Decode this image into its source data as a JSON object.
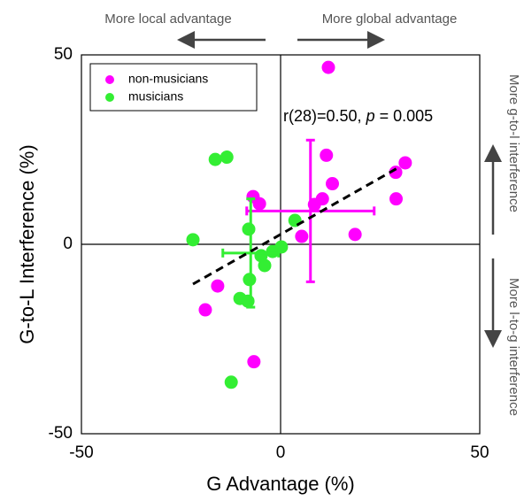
{
  "chart_data": {
    "type": "scatter",
    "xlabel": "G Advantage (%)",
    "ylabel": "G-to-L Interference (%)",
    "xlim": [
      -50,
      50
    ],
    "ylim": [
      -50,
      50
    ],
    "xticks": [
      -50,
      0,
      50
    ],
    "yticks": [
      -50,
      0,
      50
    ],
    "legend": "upper left",
    "series": [
      {
        "name": "non-musicians",
        "color": "#ff00ff",
        "x": [
          12,
          11.5,
          13,
          31.3,
          28.9,
          29,
          10.5,
          8.5,
          -6.9,
          -5.3,
          5.3,
          18.7,
          -15.8,
          -18.9,
          -6.7
        ],
        "values": [
          46.7,
          23.5,
          16,
          21.5,
          19,
          12,
          12,
          10.5,
          12.6,
          10.7,
          2.1,
          2.6,
          -11,
          -17.3,
          -31
        ]
      },
      {
        "name": "musicians",
        "color": "#33ee33",
        "x": [
          -16.4,
          -13.5,
          -22,
          -8,
          -7.8,
          -10.2,
          -8.2,
          -4.9,
          -4,
          -2,
          0.2,
          -12.4,
          3.6
        ],
        "values": [
          22.4,
          23,
          1.2,
          4,
          -9.3,
          -14.3,
          -15,
          -3,
          -5.6,
          -1.9,
          -0.7,
          -36.4,
          6.3
        ]
      }
    ],
    "errorbars": [
      {
        "color": "#ff00ff",
        "x": 7.5,
        "y": 8.8,
        "xerr": 16,
        "yerr": 18.7
      },
      {
        "color": "#33ee33",
        "x": -7.5,
        "y": -2.3,
        "xerr": 7,
        "yerr": 14.3
      }
    ],
    "fit": {
      "x": [
        -22,
        30
      ],
      "values": [
        -10.5,
        20.5
      ]
    },
    "annotation": [
      "r(28)=0.50, ",
      "p",
      " = 0.005"
    ],
    "arrow_labels": {
      "left": "More local advantage",
      "right": "More global advantage",
      "up": "More g-to-l interference",
      "down": "More l-to-g interference"
    }
  }
}
